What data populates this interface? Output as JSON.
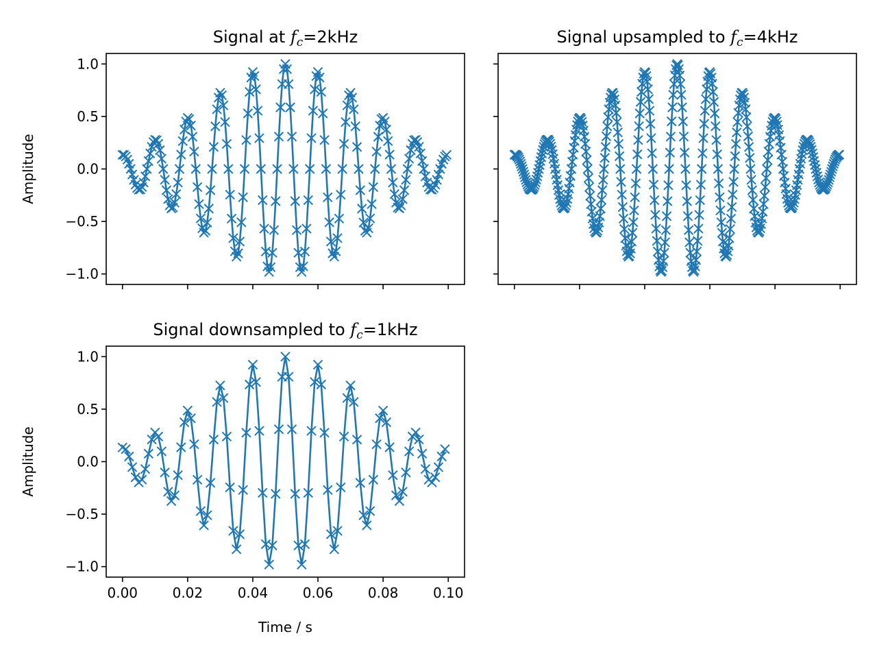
{
  "chart_data": [
    {
      "type": "line",
      "title_parts": {
        "pre": "Signal at ",
        "var": "f",
        "sub": "c",
        "post": "=2kHz"
      },
      "xlabel": "",
      "ylabel": "Amplitude",
      "xlim": [
        -0.005,
        0.105
      ],
      "ylim": [
        -1.1,
        1.1
      ],
      "xticks": [
        0.0,
        0.02,
        0.04,
        0.06,
        0.08,
        0.1
      ],
      "xtick_labels": [],
      "yticks": [
        1.0,
        0.5,
        0.0,
        -0.5,
        -1.0
      ],
      "ytick_labels": [
        "1.0",
        "0.5",
        "0.0",
        "−0.5",
        "−1.0"
      ],
      "marker": "x",
      "color": "#1f77b4",
      "signal": {
        "carrier_hz": 100,
        "envelope_sigma_s": 0.025,
        "center_s": 0.05,
        "t_start": 0.0,
        "t_end": 0.1
      },
      "sample_step_s": 0.0005
    },
    {
      "type": "line",
      "title_parts": {
        "pre": "Signal upsampled to ",
        "var": "f",
        "sub": "c",
        "post": "=4kHz"
      },
      "xlabel": "",
      "ylabel": "",
      "xlim": [
        -0.005,
        0.105
      ],
      "ylim": [
        -1.1,
        1.1
      ],
      "xticks": [
        0.0,
        0.02,
        0.04,
        0.06,
        0.08,
        0.1
      ],
      "xtick_labels": [],
      "yticks": [
        1.0,
        0.5,
        0.0,
        -0.5,
        -1.0
      ],
      "ytick_labels": [],
      "marker": "x",
      "color": "#1f77b4",
      "signal": {
        "carrier_hz": 100,
        "envelope_sigma_s": 0.025,
        "center_s": 0.05,
        "t_start": 0.0,
        "t_end": 0.1
      },
      "sample_step_s": 0.00025
    },
    {
      "type": "line",
      "title_parts": {
        "pre": "Signal downsampled to ",
        "var": "f",
        "sub": "c",
        "post": "=1kHz"
      },
      "xlabel": "Time / s",
      "ylabel": "Amplitude",
      "xlim": [
        -0.005,
        0.105
      ],
      "ylim": [
        -1.1,
        1.1
      ],
      "xticks": [
        0.0,
        0.02,
        0.04,
        0.06,
        0.08,
        0.1
      ],
      "xtick_labels": [
        "0.00",
        "0.02",
        "0.04",
        "0.06",
        "0.08",
        "0.10"
      ],
      "yticks": [
        1.0,
        0.5,
        0.0,
        -0.5,
        -1.0
      ],
      "ytick_labels": [
        "1.0",
        "0.5",
        "0.0",
        "−0.5",
        "−1.0"
      ],
      "marker": "x",
      "color": "#1f77b4",
      "signal": {
        "carrier_hz": 100,
        "envelope_sigma_s": 0.025,
        "center_s": 0.05,
        "t_start": 0.0,
        "t_end": 0.1
      },
      "sample_step_s": 0.001
    }
  ]
}
